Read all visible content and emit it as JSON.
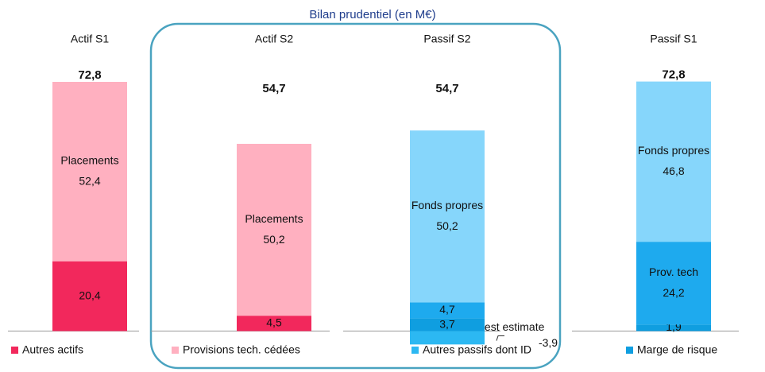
{
  "chart_data": {
    "type": "stacked_bar",
    "title": "Bilan prudentiel (en M€)",
    "categories": [
      "Actif  S1",
      "Actif  S2",
      "Passif S2",
      "Passif S1"
    ],
    "total_labels": [
      "72,8",
      "54,7",
      "54,7",
      "72,8"
    ],
    "ylim": [
      -8,
      80
    ],
    "series": [
      {
        "name": "Autres actifs",
        "color": "#f2285c",
        "values": [
          20.4,
          4.5,
          null,
          null
        ],
        "value_labels": [
          "20,4",
          "4,5",
          null,
          null
        ],
        "labels": [
          null,
          null,
          null,
          null
        ]
      },
      {
        "name": "Provisions tech. cédées",
        "color": "#ffb0c0",
        "values": [
          52.4,
          50.2,
          null,
          null
        ],
        "value_labels": [
          "52,4",
          "50,2",
          null,
          null
        ],
        "labels": [
          "Placements",
          "Placements",
          null,
          null
        ]
      },
      {
        "name": "Autres passifs dont ID",
        "color": "#2cb8f2",
        "values": [
          null,
          null,
          -3.9,
          null
        ],
        "value_labels": [
          null,
          null,
          "-3,9",
          null
        ],
        "labels": [
          null,
          null,
          "Best estimate",
          null
        ]
      },
      {
        "name": "Marge de risque",
        "color": "#0f9ee0",
        "values": [
          null,
          null,
          3.7,
          1.9
        ],
        "value_labels": [
          null,
          null,
          "3,7",
          "1,9"
        ],
        "labels": [
          null,
          null,
          null,
          null
        ]
      },
      {
        "color": "#1eaaee",
        "values": [
          null,
          null,
          4.7,
          24.2
        ],
        "value_labels": [
          null,
          null,
          "4,7",
          "24,2"
        ],
        "labels": [
          null,
          null,
          null,
          "Prov. tech"
        ]
      },
      {
        "color": "#86d6fb",
        "values": [
          null,
          null,
          50.2,
          46.8
        ],
        "value_labels": [
          null,
          null,
          "50,2",
          "46,8"
        ],
        "labels": [
          null,
          null,
          "Fonds propres",
          "Fonds propres"
        ]
      }
    ]
  }
}
